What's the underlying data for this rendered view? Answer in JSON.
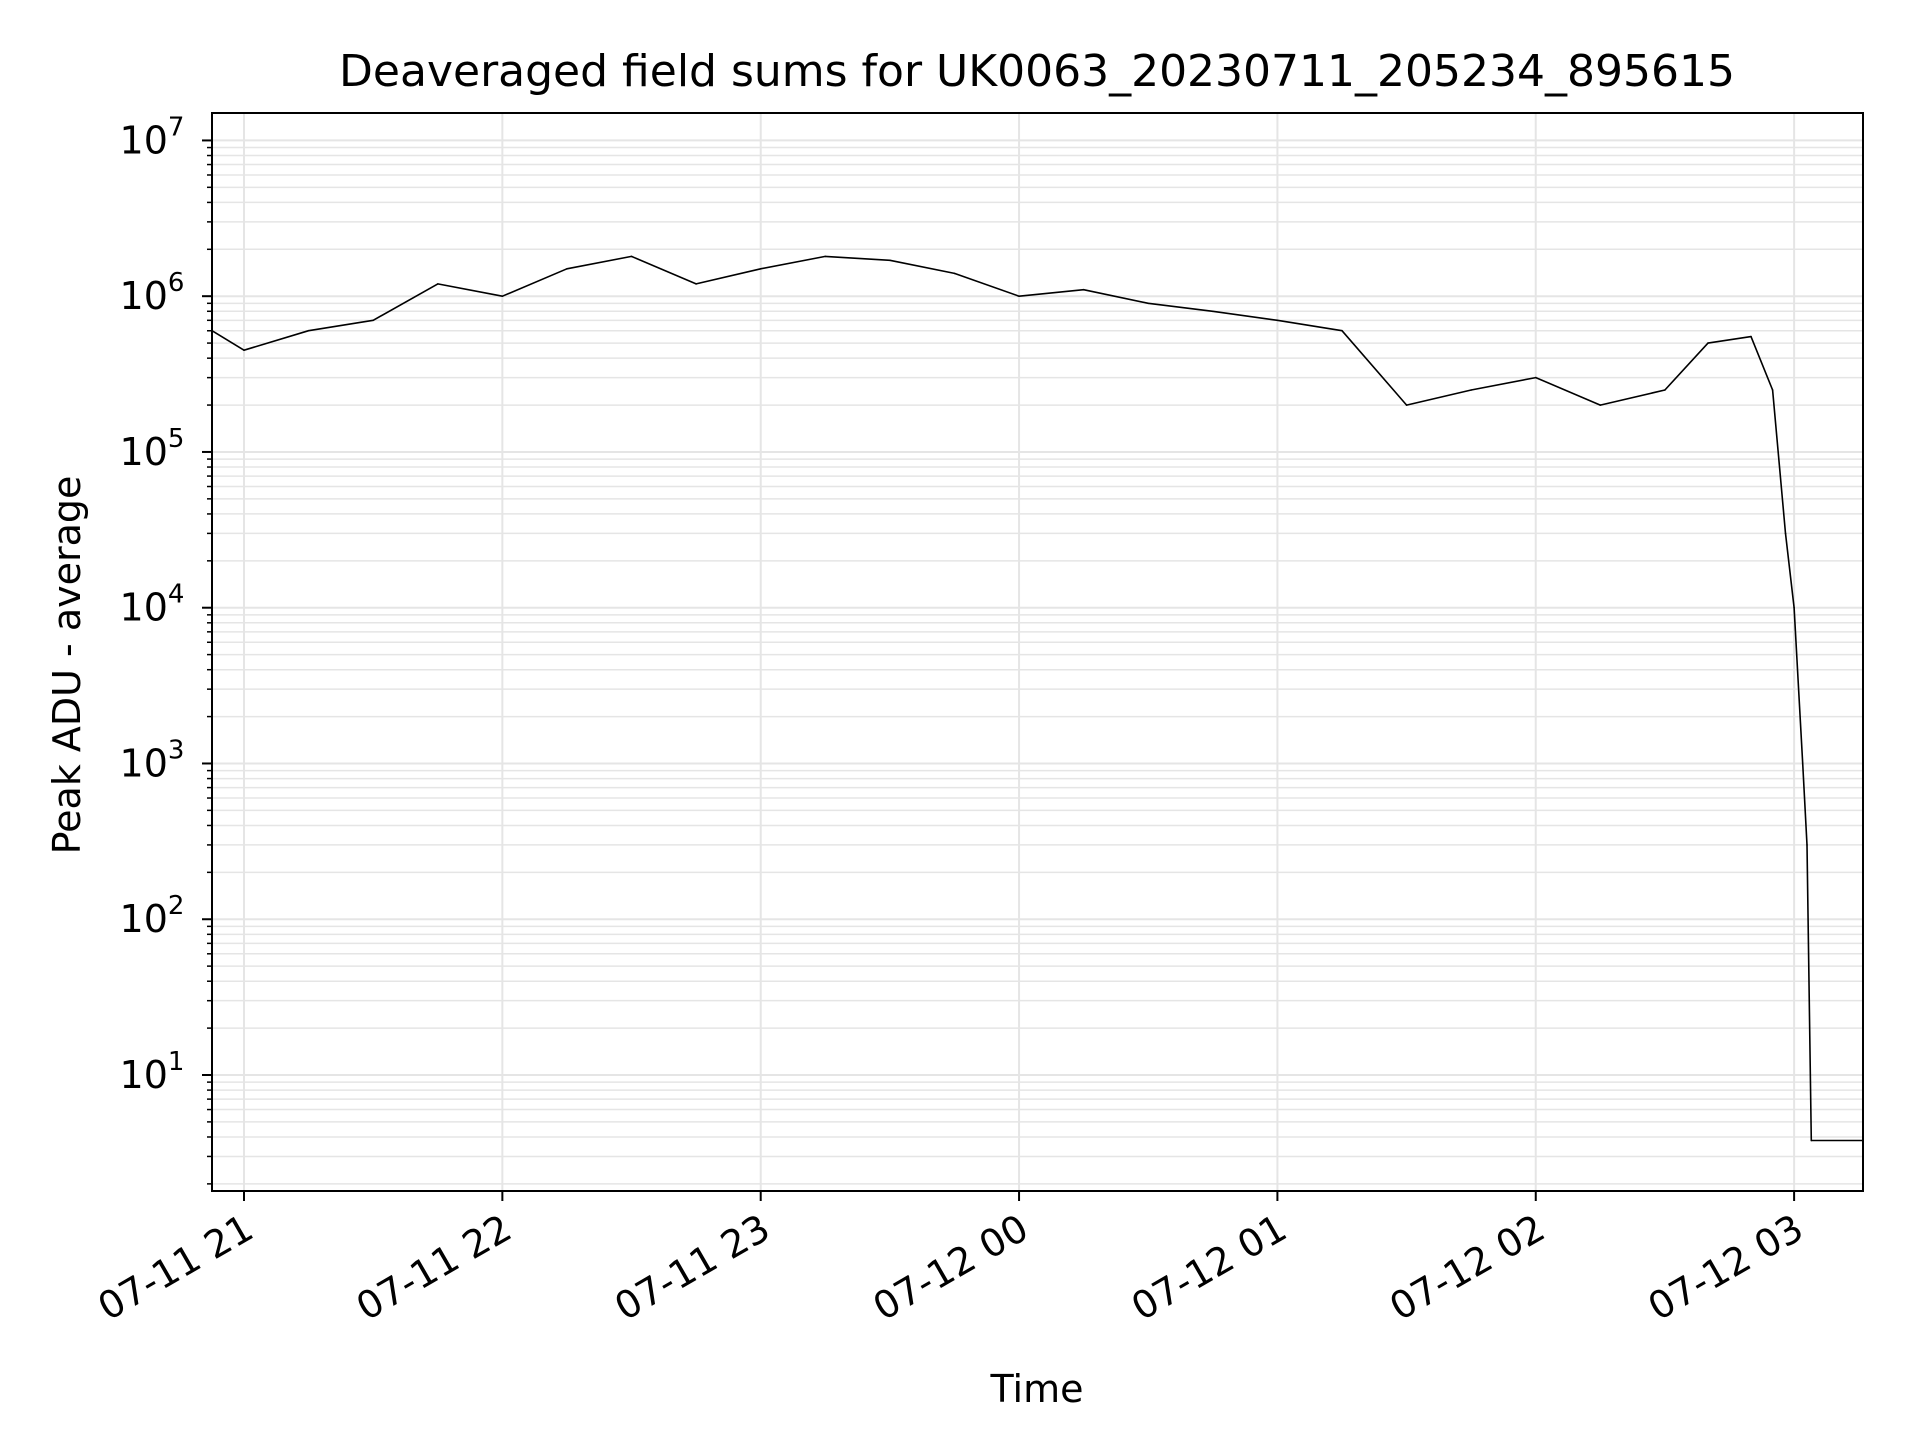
{
  "chart_data": {
    "type": "line",
    "title": "Deaveraged field sums for UK0063_20230711_205234_895615",
    "xlabel": "Time",
    "ylabel": "Peak ADU - average",
    "yscale": "log",
    "ylim": [
      1.8,
      15000000
    ],
    "xlim": [
      "2023-07-11T20:52:34",
      "2023-07-12T03:16:00"
    ],
    "grid": true,
    "line_color": "#000000",
    "grid_color": "#e5e5e5",
    "x_ticks": [
      {
        "t": "2023-07-11T21:00:00",
        "label": "07-11 21"
      },
      {
        "t": "2023-07-11T22:00:00",
        "label": "07-11 22"
      },
      {
        "t": "2023-07-11T23:00:00",
        "label": "07-11 23"
      },
      {
        "t": "2023-07-12T00:00:00",
        "label": "07-12 00"
      },
      {
        "t": "2023-07-12T01:00:00",
        "label": "07-12 01"
      },
      {
        "t": "2023-07-12T02:00:00",
        "label": "07-12 02"
      },
      {
        "t": "2023-07-12T03:00:00",
        "label": "07-12 03"
      }
    ],
    "y_ticks": [
      {
        "value": 10,
        "base": "10",
        "exp": "1"
      },
      {
        "value": 100,
        "base": "10",
        "exp": "2"
      },
      {
        "value": 1000,
        "base": "10",
        "exp": "3"
      },
      {
        "value": 10000,
        "base": "10",
        "exp": "4"
      },
      {
        "value": 100000,
        "base": "10",
        "exp": "5"
      },
      {
        "value": 1000000,
        "base": "10",
        "exp": "6"
      },
      {
        "value": 10000000,
        "base": "10",
        "exp": "7"
      }
    ],
    "series": [
      {
        "points": [
          [
            "2023-07-11T20:52:34",
            600000
          ],
          [
            "2023-07-11T21:00:00",
            450000
          ],
          [
            "2023-07-11T21:15:00",
            600000
          ],
          [
            "2023-07-11T21:30:00",
            700000
          ],
          [
            "2023-07-11T21:45:00",
            1200000
          ],
          [
            "2023-07-11T22:00:00",
            1000000
          ],
          [
            "2023-07-11T22:15:00",
            1500000
          ],
          [
            "2023-07-11T22:30:00",
            1800000
          ],
          [
            "2023-07-11T22:45:00",
            1200000
          ],
          [
            "2023-07-11T23:00:00",
            1500000
          ],
          [
            "2023-07-11T23:15:00",
            1800000
          ],
          [
            "2023-07-11T23:30:00",
            1700000
          ],
          [
            "2023-07-11T23:45:00",
            1400000
          ],
          [
            "2023-07-12T00:00:00",
            1000000
          ],
          [
            "2023-07-12T00:15:00",
            1100000
          ],
          [
            "2023-07-12T00:30:00",
            900000
          ],
          [
            "2023-07-12T00:45:00",
            800000
          ],
          [
            "2023-07-12T01:00:00",
            700000
          ],
          [
            "2023-07-12T01:15:00",
            600000
          ],
          [
            "2023-07-12T01:30:00",
            200000
          ],
          [
            "2023-07-12T01:45:00",
            250000
          ],
          [
            "2023-07-12T02:00:00",
            300000
          ],
          [
            "2023-07-12T02:15:00",
            200000
          ],
          [
            "2023-07-12T02:30:00",
            250000
          ],
          [
            "2023-07-12T02:40:00",
            500000
          ],
          [
            "2023-07-12T02:50:00",
            550000
          ],
          [
            "2023-07-12T02:55:00",
            250000
          ],
          [
            "2023-07-12T02:58:00",
            30000
          ],
          [
            "2023-07-12T03:00:00",
            10000
          ],
          [
            "2023-07-12T03:02:00",
            1000
          ],
          [
            "2023-07-12T03:03:00",
            300
          ],
          [
            "2023-07-12T03:04:00",
            3.8
          ],
          [
            "2023-07-12T03:16:00",
            3.8
          ]
        ]
      }
    ]
  }
}
